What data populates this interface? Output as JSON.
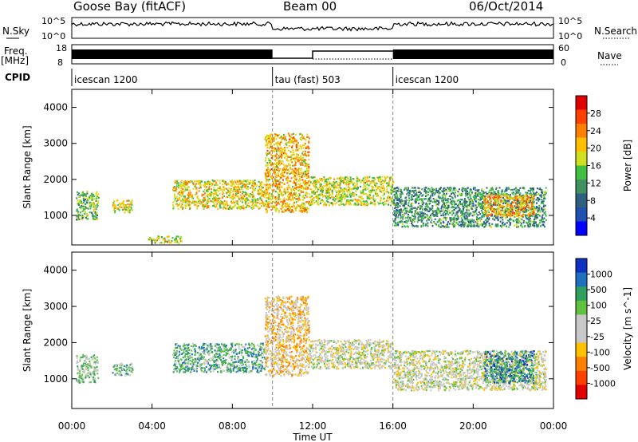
{
  "header": {
    "station": "Goose Bay (fitACF)",
    "beam": "Beam 00",
    "date": "06/Oct/2014"
  },
  "strip_labels": {
    "nsky": "N.Sky",
    "nsearch": "N.Search",
    "freq": "Freq.",
    "freq_unit": "[MHz]",
    "nave": "Nave",
    "cpid": "CPID",
    "nsky_ticks": [
      "10^5",
      "10^0"
    ],
    "nsearch_ticks": [
      "10^5",
      "10^0"
    ],
    "freq_ticks": [
      "18",
      "8"
    ],
    "nave_ticks": [
      "60",
      "0"
    ]
  },
  "cpid_segments": [
    {
      "label": "icescan 1200",
      "start_h": 0,
      "end_h": 10
    },
    {
      "label": "tau (fast) 503",
      "start_h": 10,
      "end_h": 16
    },
    {
      "label": "icescan 1200",
      "start_h": 16,
      "end_h": 24
    }
  ],
  "axes": {
    "ylabel": "Slant Range [km]",
    "xlabel": "Time UT",
    "xlim_h": [
      0,
      24
    ],
    "ylim_km": [
      180,
      4500
    ],
    "yticks": [
      1000,
      2000,
      3000,
      4000
    ],
    "xticks": [
      "00:00",
      "04:00",
      "08:00",
      "12:00",
      "16:00",
      "20:00",
      "00:00"
    ]
  },
  "chart_data": [
    {
      "type": "heatmap",
      "quantity": "Power",
      "colorbar_label": "Power [dB]",
      "colorbar_ticks": [
        "28",
        "24",
        "20",
        "16",
        "12",
        "8",
        "4"
      ],
      "colorbar_colors": [
        "#e00000",
        "#ff4000",
        "#ff8000",
        "#ffc000",
        "#d0e020",
        "#40c040",
        "#409060",
        "#306080",
        "#2050b0",
        "#0000ff"
      ],
      "regions": [
        {
          "t0": 0.2,
          "t1": 1.3,
          "r0": 900,
          "r1": 1700,
          "level": 0.45
        },
        {
          "t0": 2.0,
          "t1": 3.0,
          "r0": 1100,
          "r1": 1450,
          "level": 0.6
        },
        {
          "t0": 3.8,
          "t1": 5.5,
          "r0": 250,
          "r1": 450,
          "level": 0.55
        },
        {
          "t0": 5.0,
          "t1": 9.6,
          "r0": 1200,
          "r1": 2000,
          "level": 0.6
        },
        {
          "t0": 9.6,
          "t1": 11.8,
          "r0": 1100,
          "r1": 3300,
          "level": 0.65
        },
        {
          "t0": 11.8,
          "t1": 16.0,
          "r0": 1300,
          "r1": 2100,
          "level": 0.55
        },
        {
          "t0": 16.0,
          "t1": 23.6,
          "r0": 700,
          "r1": 1800,
          "level": 0.35
        },
        {
          "t0": 20.5,
          "t1": 23.0,
          "r0": 1000,
          "r1": 1600,
          "level": 0.7
        }
      ]
    },
    {
      "type": "heatmap",
      "quantity": "Velocity",
      "colorbar_label": "Velocity [m s^-1]",
      "colorbar_ticks": [
        "1000",
        "500",
        "100",
        "25",
        "-25",
        "-100",
        "-500",
        "-1000"
      ],
      "colorbar_colors": [
        "#1030c0",
        "#2070c0",
        "#30a060",
        "#60c040",
        "#c8c8c8",
        "#c8c8c8",
        "#ffc000",
        "#ff8000",
        "#ff4000",
        "#e00000"
      ],
      "regions": [
        {
          "t0": 0.2,
          "t1": 1.3,
          "r0": 900,
          "r1": 1700,
          "level": 0.6
        },
        {
          "t0": 2.0,
          "t1": 3.0,
          "r0": 1100,
          "r1": 1450,
          "level": 0.65
        },
        {
          "t0": 5.0,
          "t1": 9.6,
          "r0": 1200,
          "r1": 2000,
          "level": 0.7
        },
        {
          "t0": 9.6,
          "t1": 11.8,
          "r0": 1100,
          "r1": 3300,
          "level": 0.4
        },
        {
          "t0": 11.8,
          "t1": 16.0,
          "r0": 1300,
          "r1": 2100,
          "level": 0.5
        },
        {
          "t0": 16.0,
          "t1": 23.6,
          "r0": 700,
          "r1": 1800,
          "level": 0.5
        },
        {
          "t0": 20.5,
          "t1": 23.0,
          "r0": 900,
          "r1": 1800,
          "level": 0.78
        }
      ]
    }
  ]
}
